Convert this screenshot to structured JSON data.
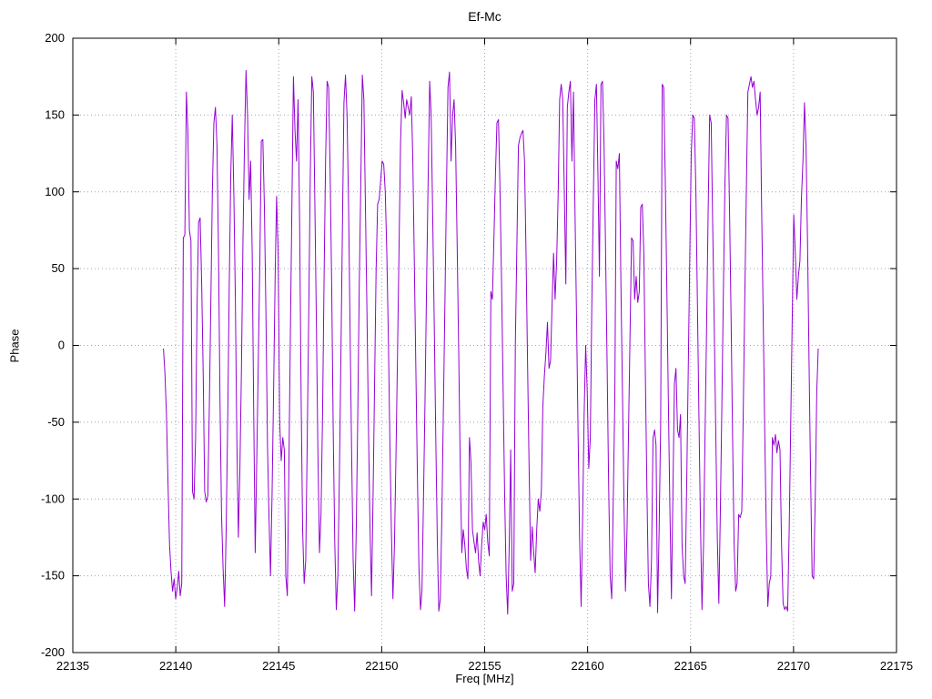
{
  "chart_data": {
    "type": "line",
    "title": "Ef-Mc",
    "xlabel": "Freq [MHz]",
    "ylabel": "Phase",
    "xlim": [
      22135,
      22175
    ],
    "ylim": [
      -200,
      200
    ],
    "x_ticks": [
      22135,
      22140,
      22145,
      22150,
      22155,
      22160,
      22165,
      22170,
      22175
    ],
    "y_ticks": [
      -200,
      -150,
      -100,
      -50,
      0,
      50,
      100,
      150,
      200
    ],
    "grid": true,
    "legend": "none",
    "x_start": 22139.4,
    "x_step": 0.0743,
    "series": [
      {
        "name": "Ef-Mc",
        "color": "#9400d3",
        "values": [
          -2,
          -18,
          -45,
          -90,
          -130,
          -148,
          -160,
          -152,
          -165,
          -158,
          -147,
          -163,
          -155,
          70,
          72,
          165,
          140,
          75,
          68,
          -95,
          -100,
          -60,
          25,
          80,
          83,
          40,
          -20,
          -95,
          -102,
          -98,
          -40,
          30,
          100,
          145,
          155,
          130,
          60,
          -35,
          -110,
          -145,
          -170,
          -120,
          -48,
          35,
          110,
          150,
          100,
          30,
          -60,
          -125,
          -80,
          -15,
          70,
          130,
          179,
          150,
          95,
          120,
          60,
          -40,
          -135,
          -75,
          -10,
          55,
          133,
          134,
          90,
          20,
          -65,
          -110,
          -150,
          -98,
          -30,
          45,
          97,
          60,
          -50,
          -75,
          -60,
          -68,
          -150,
          -163,
          -80,
          10,
          95,
          175,
          140,
          120,
          160,
          80,
          -30,
          -120,
          -155,
          -140,
          -60,
          20,
          110,
          175,
          165,
          90,
          10,
          -70,
          -135,
          -110,
          -45,
          45,
          120,
          172,
          168,
          110,
          35,
          -55,
          -128,
          -172,
          -150,
          -85,
          -5,
          75,
          158,
          176,
          150,
          90,
          12,
          -68,
          -140,
          -173,
          -120,
          -50,
          38,
          105,
          176,
          160,
          95,
          25,
          -52,
          -118,
          -163,
          -98,
          -28,
          48,
          92,
          95,
          108,
          120,
          118,
          100,
          60,
          5,
          -60,
          -120,
          -165,
          -130,
          -70,
          -8,
          62,
          132,
          166,
          158,
          148,
          160,
          155,
          150,
          162,
          120,
          55,
          -15,
          -85,
          -145,
          -172,
          -160,
          -100,
          -35,
          40,
          108,
          172,
          150,
          85,
          15,
          -60,
          -128,
          -173,
          -165,
          -110,
          -40,
          30,
          100,
          168,
          178,
          120,
          150,
          160,
          130,
          65,
          -5,
          -80,
          -135,
          -120,
          -130,
          -145,
          -152,
          -60,
          -75,
          -120,
          -128,
          -135,
          -122,
          -140,
          -150,
          -130,
          -115,
          -120,
          -110,
          -128,
          -137,
          35,
          30,
          70,
          110,
          145,
          147,
          100,
          40,
          -25,
          -95,
          -150,
          -175,
          -130,
          -68,
          -160,
          -155,
          0,
          65,
          130,
          135,
          138,
          140,
          120,
          58,
          -10,
          -78,
          -140,
          -118,
          -135,
          -148,
          -120,
          -100,
          -108,
          -95,
          -40,
          -20,
          -5,
          15,
          -15,
          -10,
          25,
          60,
          30,
          55,
          100,
          160,
          170,
          160,
          100,
          40,
          155,
          165,
          172,
          120,
          165,
          90,
          20,
          -55,
          -125,
          -170,
          -110,
          -45,
          0,
          -30,
          -80,
          -60,
          25,
          95,
          160,
          170,
          110,
          45,
          170,
          172,
          130,
          60,
          -15,
          -90,
          -150,
          -165,
          -100,
          -35,
          120,
          115,
          125,
          40,
          -30,
          -100,
          -160,
          -120,
          -55,
          10,
          70,
          68,
          30,
          45,
          28,
          35,
          90,
          92,
          60,
          -20,
          -95,
          -155,
          -170,
          -140,
          -60,
          -55,
          -65,
          -174,
          -120,
          -50,
          170,
          168,
          110,
          40,
          -35,
          -105,
          -165,
          -98,
          -25,
          -15,
          -55,
          -60,
          -45,
          -130,
          -150,
          -155,
          -90,
          -20,
          55,
          125,
          150,
          148,
          100,
          30,
          -45,
          -115,
          -172,
          -130,
          -60,
          10,
          85,
          150,
          145,
          80,
          15,
          -55,
          -125,
          -168,
          -110,
          -40,
          35,
          105,
          150,
          148,
          90,
          20,
          -60,
          -130,
          -160,
          -155,
          -110,
          -112,
          -108,
          -40,
          30,
          100,
          165,
          170,
          175,
          168,
          172,
          160,
          150,
          155,
          165,
          90,
          20,
          -55,
          -120,
          -170,
          -155,
          -150,
          -60,
          -65,
          -58,
          -70,
          -62,
          -68,
          -130,
          -168,
          -172,
          -170,
          -173,
          -120,
          -50,
          20,
          85,
          60,
          30,
          45,
          55,
          95,
          120,
          158,
          130,
          65,
          -10,
          -85,
          -150,
          -152,
          -100,
          -30,
          -2
        ]
      }
    ],
    "grid_color": "#a0a4b8",
    "border_color": "#000000",
    "background_color": "#ffffff"
  }
}
